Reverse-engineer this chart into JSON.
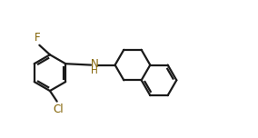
{
  "bg": "#ffffff",
  "bond_color": "#1a1a1a",
  "hetero_color": "#806000",
  "lw": 1.6,
  "fs": 7.5,
  "fw": 2.84,
  "fh": 1.52,
  "dpi": 100,
  "xlim": [
    0.0,
    10.0
  ],
  "ylim": [
    0.3,
    5.7
  ]
}
